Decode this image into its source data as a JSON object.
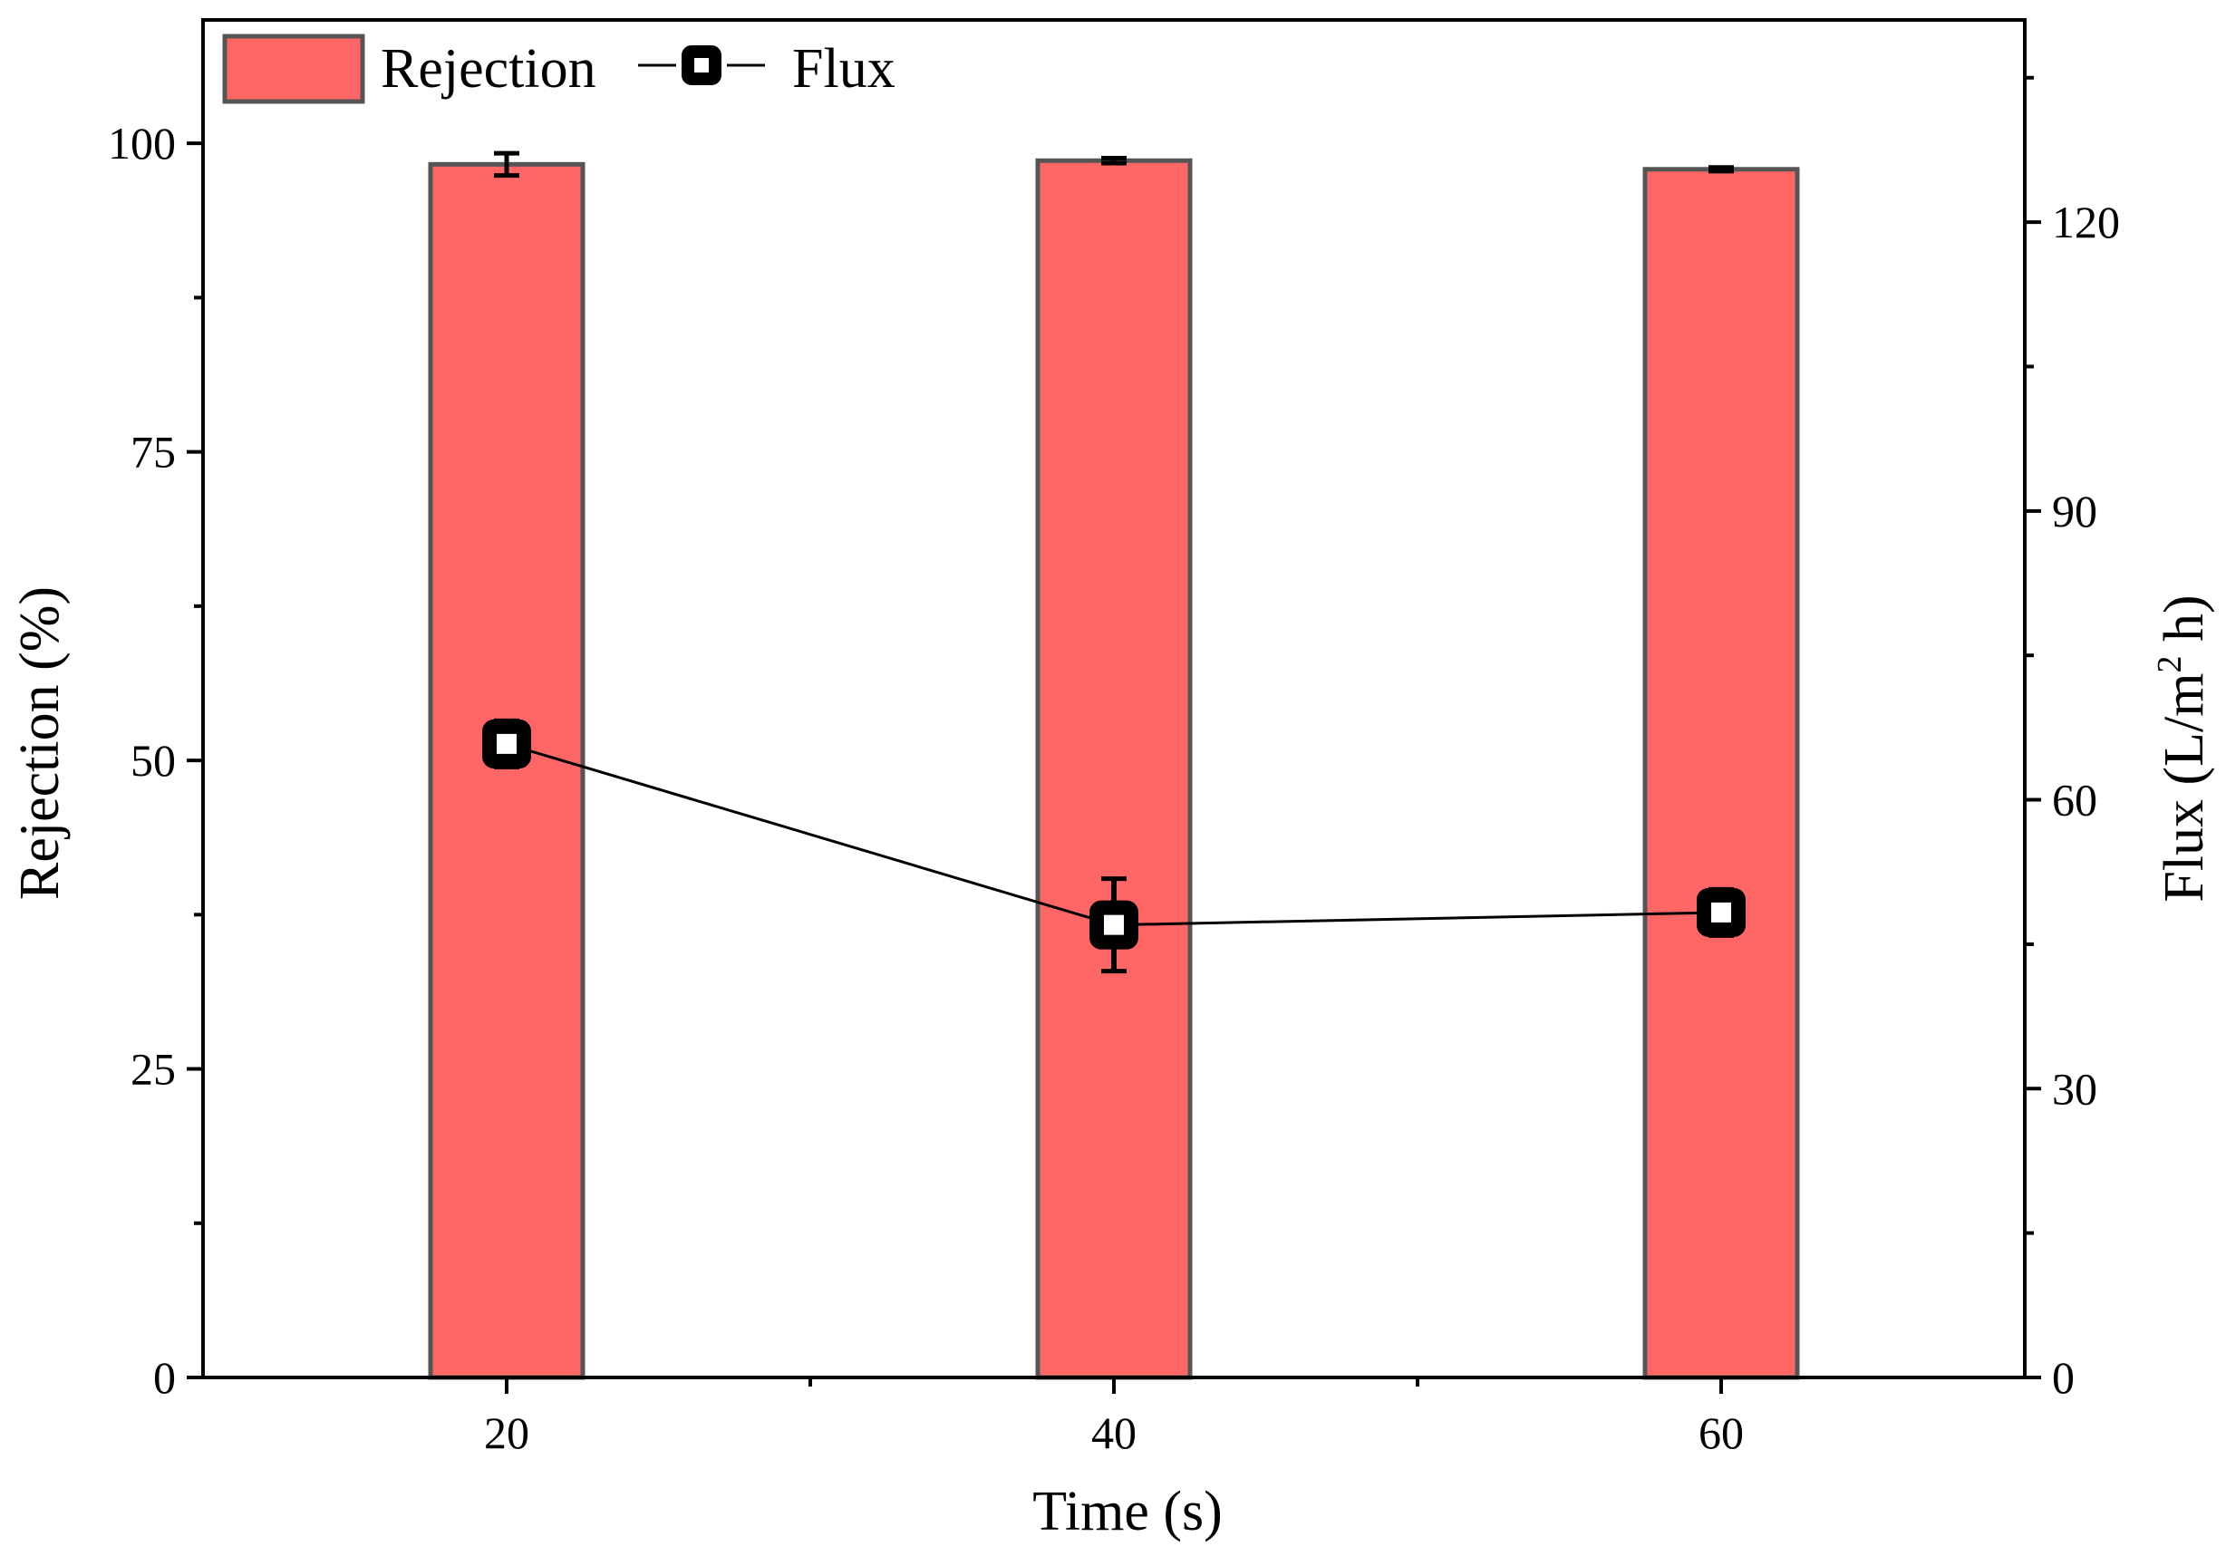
{
  "chart_data": {
    "type": "bar",
    "xlabel": "Time (s)",
    "ylabel_left": "Rejection (%)",
    "ylabel_right_main": "Flux (L/m",
    "ylabel_right_sup": "2",
    "ylabel_right_tail": " h)",
    "categories": [
      "20",
      "40",
      "60"
    ],
    "x_values": [
      20,
      40,
      60
    ],
    "xlim": [
      10,
      70
    ],
    "x_ticks": [
      20,
      40,
      60
    ],
    "x_minor_ticks": [
      30,
      50
    ],
    "ylim_left": [
      0,
      110
    ],
    "y_left_ticks": [
      0,
      25,
      50,
      75,
      100
    ],
    "y_left_minor_ticks": [
      12.5,
      37.5,
      62.5,
      87.5
    ],
    "ylim_right": [
      0,
      141
    ],
    "y_right_ticks": [
      0,
      30,
      60,
      90,
      120
    ],
    "y_right_minor_ticks": [
      15,
      45,
      75,
      105,
      135
    ],
    "series": [
      {
        "name": "Rejection",
        "type": "bar",
        "axis": "left",
        "values": [
          98.3,
          98.6,
          97.9
        ],
        "errors": [
          0.9,
          0.2,
          0.15
        ],
        "color": "#ff6666",
        "edge_color": "#555555"
      },
      {
        "name": "Flux",
        "type": "line",
        "axis": "right",
        "marker": "square-open",
        "values": [
          65.8,
          47.0,
          48.3
        ],
        "errors": [
          2.4,
          4.8,
          2.4
        ],
        "color": "#000000"
      }
    ],
    "legend_position": "top-left"
  }
}
